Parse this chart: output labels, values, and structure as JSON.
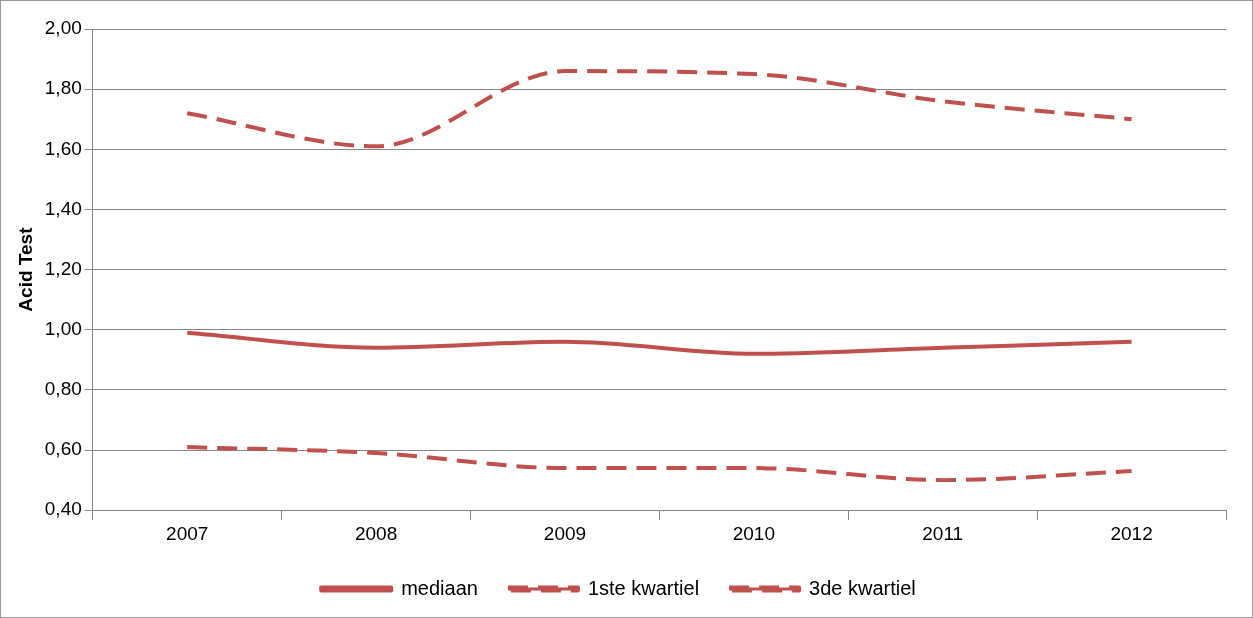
{
  "chart_data": {
    "type": "line",
    "ylabel": "Acid Test",
    "categories": [
      "2007",
      "2008",
      "2009",
      "2010",
      "2011",
      "2012"
    ],
    "series": [
      {
        "name": "mediaan",
        "color": "#c0504d",
        "line_style": "solid",
        "values": [
          0.99,
          0.94,
          0.96,
          0.92,
          0.94,
          0.96
        ]
      },
      {
        "name": "1ste kwartiel",
        "color": "#c0504d",
        "line_style": "dashed",
        "values": [
          0.61,
          0.59,
          0.54,
          0.54,
          0.5,
          0.53
        ]
      },
      {
        "name": "3de kwartiel",
        "color": "#c0504d",
        "line_style": "dashed",
        "values": [
          1.72,
          1.61,
          1.86,
          1.85,
          1.76,
          1.7
        ]
      }
    ],
    "ylim": [
      0.4,
      2.0
    ],
    "yticks": [
      {
        "value": 0.4,
        "label": "0,40"
      },
      {
        "value": 0.6,
        "label": "0,60"
      },
      {
        "value": 0.8,
        "label": "0,80"
      },
      {
        "value": 1.0,
        "label": "1,00"
      },
      {
        "value": 1.2,
        "label": "1,20"
      },
      {
        "value": 1.4,
        "label": "1,40"
      },
      {
        "value": 1.6,
        "label": "1,60"
      },
      {
        "value": 1.8,
        "label": "1,80"
      },
      {
        "value": 2.0,
        "label": "2,00"
      }
    ],
    "grid": "y",
    "legend": "bottom",
    "marker": "none"
  }
}
